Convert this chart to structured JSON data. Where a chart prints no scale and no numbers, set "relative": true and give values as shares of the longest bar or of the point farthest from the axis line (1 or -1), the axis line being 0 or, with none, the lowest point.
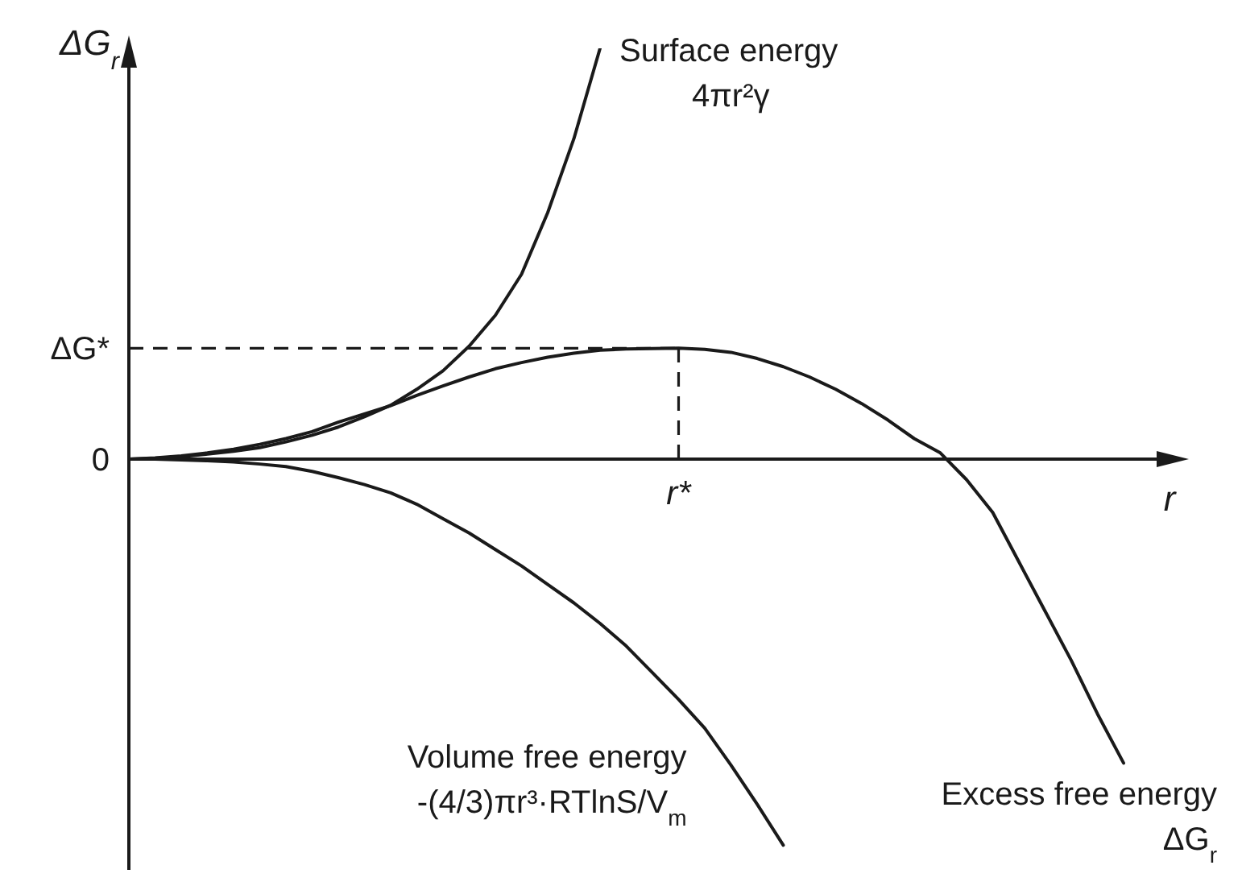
{
  "chart_data": {
    "type": "line",
    "relative": true,
    "xlabel": "r",
    "ylabel": "ΔG$_{r}$",
    "marker": "none",
    "grid": false,
    "categories": [
      null,
      null,
      null,
      null,
      null,
      null,
      null,
      null,
      null,
      null,
      null,
      null,
      null,
      null,
      null,
      null,
      null,
      null,
      null,
      null,
      null,
      null,
      null,
      null,
      null,
      null,
      null,
      null,
      null,
      null,
      null,
      null,
      null,
      null,
      null,
      null,
      null,
      null,
      null
    ],
    "series": [
      {
        "name": "Surface energy",
        "color": "#1a1a1a",
        "values": [
          0,
          0.002,
          0.006,
          0.012,
          0.019,
          0.028,
          0.042,
          0.058,
          0.078,
          0.103,
          0.131,
          0.17,
          0.215,
          0.275,
          0.35,
          0.45,
          0.6,
          0.78,
          1,
          null,
          null,
          null,
          null,
          null,
          null,
          null,
          null,
          null,
          null,
          null,
          null,
          null,
          null,
          null,
          null,
          null,
          null,
          null,
          null
        ]
      },
      {
        "name": "Volume free energy",
        "color": "#1a1a1a",
        "values": [
          0,
          0,
          -0.002,
          -0.004,
          -0.007,
          -0.012,
          -0.018,
          -0.03,
          -0.045,
          -0.062,
          -0.082,
          -0.11,
          -0.145,
          -0.18,
          -0.22,
          -0.26,
          -0.305,
          -0.35,
          -0.4,
          -0.455,
          -0.52,
          -0.585,
          -0.655,
          -0.745,
          -0.84,
          -0.94,
          null,
          null,
          null,
          null,
          null,
          null,
          null,
          null,
          null,
          null,
          null,
          null,
          null
        ]
      },
      {
        "name": "Excess free energy",
        "color": "#1a1a1a",
        "values": [
          0,
          0.003,
          0.008,
          0.015,
          0.024,
          0.036,
          0.05,
          0.067,
          0.09,
          0.11,
          0.13,
          0.155,
          0.178,
          0.2,
          0.22,
          0.235,
          0.248,
          0.258,
          0.265,
          0.268,
          0.269,
          0.27,
          0.267,
          0.26,
          0.245,
          0.225,
          0.2,
          0.17,
          0.135,
          0.095,
          0.05,
          0.015,
          -0.05,
          -0.13,
          -0.25,
          -0.37,
          -0.49,
          -0.62,
          -0.74
        ]
      }
    ],
    "ref_lines": [
      {
        "axis": "y",
        "value": 0.27,
        "label": "ΔG*",
        "line_style": "dashed",
        "color": "#1a1a1a"
      }
    ],
    "annotations": [
      "0",
      "r*",
      "4πr²γ",
      "-(4/3)πr³·RTlnS/V$_{m}$",
      "ΔG$_{r}$"
    ]
  }
}
